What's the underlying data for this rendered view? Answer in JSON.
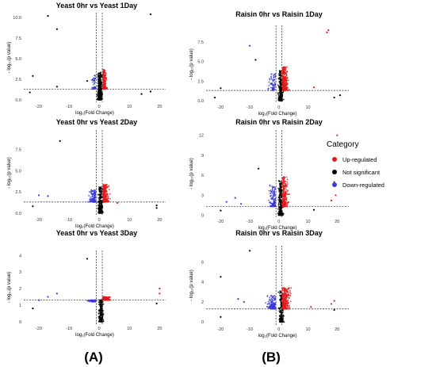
{
  "legend": {
    "title": "Category",
    "items": [
      {
        "label": "Up-regulated",
        "color": "#e41a1c"
      },
      {
        "label": "Not significant",
        "color": "#000000"
      },
      {
        "label": "Down-regulated",
        "color": "#3a3ad6"
      }
    ]
  },
  "panel_labels": [
    "(A)",
    "(B)"
  ],
  "chart_data": [
    {
      "type": "scatter",
      "title": "Yeast 0hr vs Yeast 1Day",
      "xlabel": "log₂(Fold Change)",
      "ylabel": "- log₁₀(p value)",
      "xlim": [
        -25,
        22
      ],
      "ylim": [
        -0.3,
        10.6
      ],
      "xticks": [
        -20,
        -10,
        0,
        10,
        20
      ],
      "yticks": [
        0.0,
        2.5,
        5.0,
        7.5,
        10.0
      ],
      "yticklabels": [
        "0.0",
        "2.5",
        "5.0",
        "7.5",
        "10.0"
      ],
      "vlines": [
        -1,
        1
      ],
      "hline": 1.3,
      "grid": false,
      "mix": {
        "center": 0.5,
        "spread": 1.0,
        "up": 0.3,
        "down": 0.08
      },
      "notable_points": [
        {
          "x": -17,
          "y": 10.2,
          "c": "ns"
        },
        {
          "x": 17,
          "y": 10.4,
          "c": "ns"
        },
        {
          "x": -14,
          "y": 8.6,
          "c": "ns"
        },
        {
          "x": -22,
          "y": 2.9,
          "c": "ns"
        },
        {
          "x": -14,
          "y": 1.6,
          "c": "ns"
        },
        {
          "x": -4,
          "y": 2.3,
          "c": "ns"
        },
        {
          "x": 17,
          "y": 1.0,
          "c": "ns"
        },
        {
          "x": 14,
          "y": 0.7,
          "c": "ns"
        },
        {
          "x": -23,
          "y": 0.9,
          "c": "ns"
        }
      ]
    },
    {
      "type": "scatter",
      "title": "Raisin 0hr vs Raisin 1Day",
      "xlabel": "log₂(Fold Change)",
      "ylabel": "- log₁₀(p value)",
      "xlim": [
        -25,
        24
      ],
      "ylim": [
        -0.3,
        9.6
      ],
      "xticks": [
        -20,
        -10,
        0,
        10
      ],
      "yticks": [
        0.0,
        2.5,
        5.0,
        7.5
      ],
      "yticklabels": [
        "0.0",
        "2.5",
        "5.0",
        "7.5"
      ],
      "vlines": [
        -1,
        1
      ],
      "hline": 1.3,
      "grid": false,
      "mix": {
        "center": 1.5,
        "spread": 1.6,
        "up": 0.42,
        "down": 0.12
      },
      "notable_points": [
        {
          "x": 17,
          "y": 9.0,
          "c": "up"
        },
        {
          "x": 16.5,
          "y": 8.7,
          "c": "up"
        },
        {
          "x": -10,
          "y": 7.0,
          "c": "down"
        },
        {
          "x": -8,
          "y": 5.2,
          "c": "ns"
        },
        {
          "x": -20,
          "y": 1.6,
          "c": "ns"
        },
        {
          "x": -22,
          "y": 0.4,
          "c": "ns"
        },
        {
          "x": 21,
          "y": 0.7,
          "c": "ns"
        },
        {
          "x": 19,
          "y": 0.4,
          "c": "ns"
        },
        {
          "x": 12,
          "y": 1.7,
          "c": "up"
        }
      ]
    },
    {
      "type": "scatter",
      "title": "Yeast 0hr vs Yeast 2Day",
      "xlabel": "log₂(Fold Change)",
      "ylabel": "- log₁₀(p value)",
      "xlim": [
        -25,
        22
      ],
      "ylim": [
        -0.3,
        9.8
      ],
      "xticks": [
        -20,
        -10,
        0,
        10,
        20
      ],
      "yticks": [
        0.0,
        2.5,
        5.0,
        7.5
      ],
      "yticklabels": [
        "0.0",
        "2.5",
        "5.0",
        "7.5"
      ],
      "vlines": [
        -1,
        1
      ],
      "hline": 1.3,
      "grid": false,
      "mix": {
        "center": 1.0,
        "spread": 1.5,
        "up": 0.4,
        "down": 0.15
      },
      "notable_points": [
        {
          "x": -13,
          "y": 8.5,
          "c": "ns"
        },
        {
          "x": -17,
          "y": 2.0,
          "c": "down"
        },
        {
          "x": -20,
          "y": 2.1,
          "c": "down"
        },
        {
          "x": -22,
          "y": 0.8,
          "c": "ns"
        },
        {
          "x": 19,
          "y": 0.9,
          "c": "ns"
        },
        {
          "x": 19,
          "y": 0.6,
          "c": "ns"
        },
        {
          "x": 6,
          "y": 1.2,
          "c": "up"
        }
      ]
    },
    {
      "type": "scatter",
      "title": "Raisin 0hr vs Raisin 2Day",
      "xlabel": "log₂(Fold Change)",
      "ylabel": "- log₁₀(p value)",
      "xlim": [
        -25,
        24
      ],
      "ylim": [
        -0.3,
        12.8
      ],
      "xticks": [
        -20,
        -10,
        0,
        10,
        20
      ],
      "yticks": [
        0,
        3,
        6,
        9,
        12
      ],
      "yticklabels": [
        "0",
        "3",
        "6",
        "9",
        "12"
      ],
      "vlines": [
        -1,
        1
      ],
      "hline": 1.3,
      "grid": false,
      "mix": {
        "center": 1.5,
        "spread": 1.6,
        "up": 0.38,
        "down": 0.2
      },
      "notable_points": [
        {
          "x": 20,
          "y": 12.0,
          "c": "up"
        },
        {
          "x": -7,
          "y": 7.0,
          "c": "ns"
        },
        {
          "x": 19,
          "y": 5.0,
          "c": "up"
        },
        {
          "x": 19.5,
          "y": 3.0,
          "c": "up"
        },
        {
          "x": 18,
          "y": 2.2,
          "c": "up"
        },
        {
          "x": -15,
          "y": 2.6,
          "c": "down"
        },
        {
          "x": -18,
          "y": 2.0,
          "c": "down"
        },
        {
          "x": -20,
          "y": 0.7,
          "c": "ns"
        },
        {
          "x": 12,
          "y": 0.8,
          "c": "ns"
        },
        {
          "x": -13,
          "y": 1.7,
          "c": "down"
        }
      ]
    },
    {
      "type": "scatter",
      "title": "Yeast 0hr vs Yeast 3Day",
      "xlabel": "log₂(Fold Change)",
      "ylabel": "- log₁₀(p value)",
      "xlim": [
        -25,
        22
      ],
      "ylim": [
        -0.15,
        4.3
      ],
      "xticks": [
        -20,
        -10,
        0,
        10,
        20
      ],
      "yticks": [
        0,
        1,
        2,
        3,
        4
      ],
      "yticklabels": [
        "0",
        "1",
        "2",
        "3",
        "4"
      ],
      "vlines": [
        -1,
        1
      ],
      "hline": 1.3,
      "grid": false,
      "mix": {
        "center": 1.5,
        "spread": 1.8,
        "up": 0.42,
        "down": 0.22
      },
      "notable_points": [
        {
          "x": -14,
          "y": 1.7,
          "c": "down"
        },
        {
          "x": -17,
          "y": 1.5,
          "c": "down"
        },
        {
          "x": -20,
          "y": 1.3,
          "c": "down"
        },
        {
          "x": -22,
          "y": 0.8,
          "c": "ns"
        },
        {
          "x": 20,
          "y": 2.0,
          "c": "up"
        },
        {
          "x": 20,
          "y": 1.7,
          "c": "up"
        },
        {
          "x": 19,
          "y": 1.1,
          "c": "ns"
        },
        {
          "x": -4,
          "y": 3.8,
          "c": "ns"
        }
      ]
    },
    {
      "type": "scatter",
      "title": "Raisin 0hr vs Raisin 3Day",
      "xlabel": "log₂(Fold Change)",
      "ylabel": "- log₁₀(p value)",
      "xlim": [
        -25,
        24
      ],
      "ylim": [
        -0.3,
        7.6
      ],
      "xticks": [
        -20,
        -10,
        0,
        10,
        20
      ],
      "yticks": [
        0,
        2,
        4,
        6
      ],
      "yticklabels": [
        "0",
        "2",
        "4",
        "6"
      ],
      "vlines": [
        -1,
        1
      ],
      "hline": 1.3,
      "grid": false,
      "mix": {
        "center": 2.0,
        "spread": 2.0,
        "up": 0.45,
        "down": 0.22
      },
      "notable_points": [
        {
          "x": -10,
          "y": 7.1,
          "c": "ns"
        },
        {
          "x": -20,
          "y": 4.5,
          "c": "ns"
        },
        {
          "x": -14,
          "y": 2.3,
          "c": "down"
        },
        {
          "x": -12,
          "y": 2.0,
          "c": "down"
        },
        {
          "x": -20,
          "y": 0.5,
          "c": "ns"
        },
        {
          "x": 19,
          "y": 2.1,
          "c": "up"
        },
        {
          "x": 18,
          "y": 1.8,
          "c": "up"
        },
        {
          "x": 19,
          "y": 1.2,
          "c": "ns"
        },
        {
          "x": 11,
          "y": 1.5,
          "c": "up"
        }
      ]
    }
  ]
}
